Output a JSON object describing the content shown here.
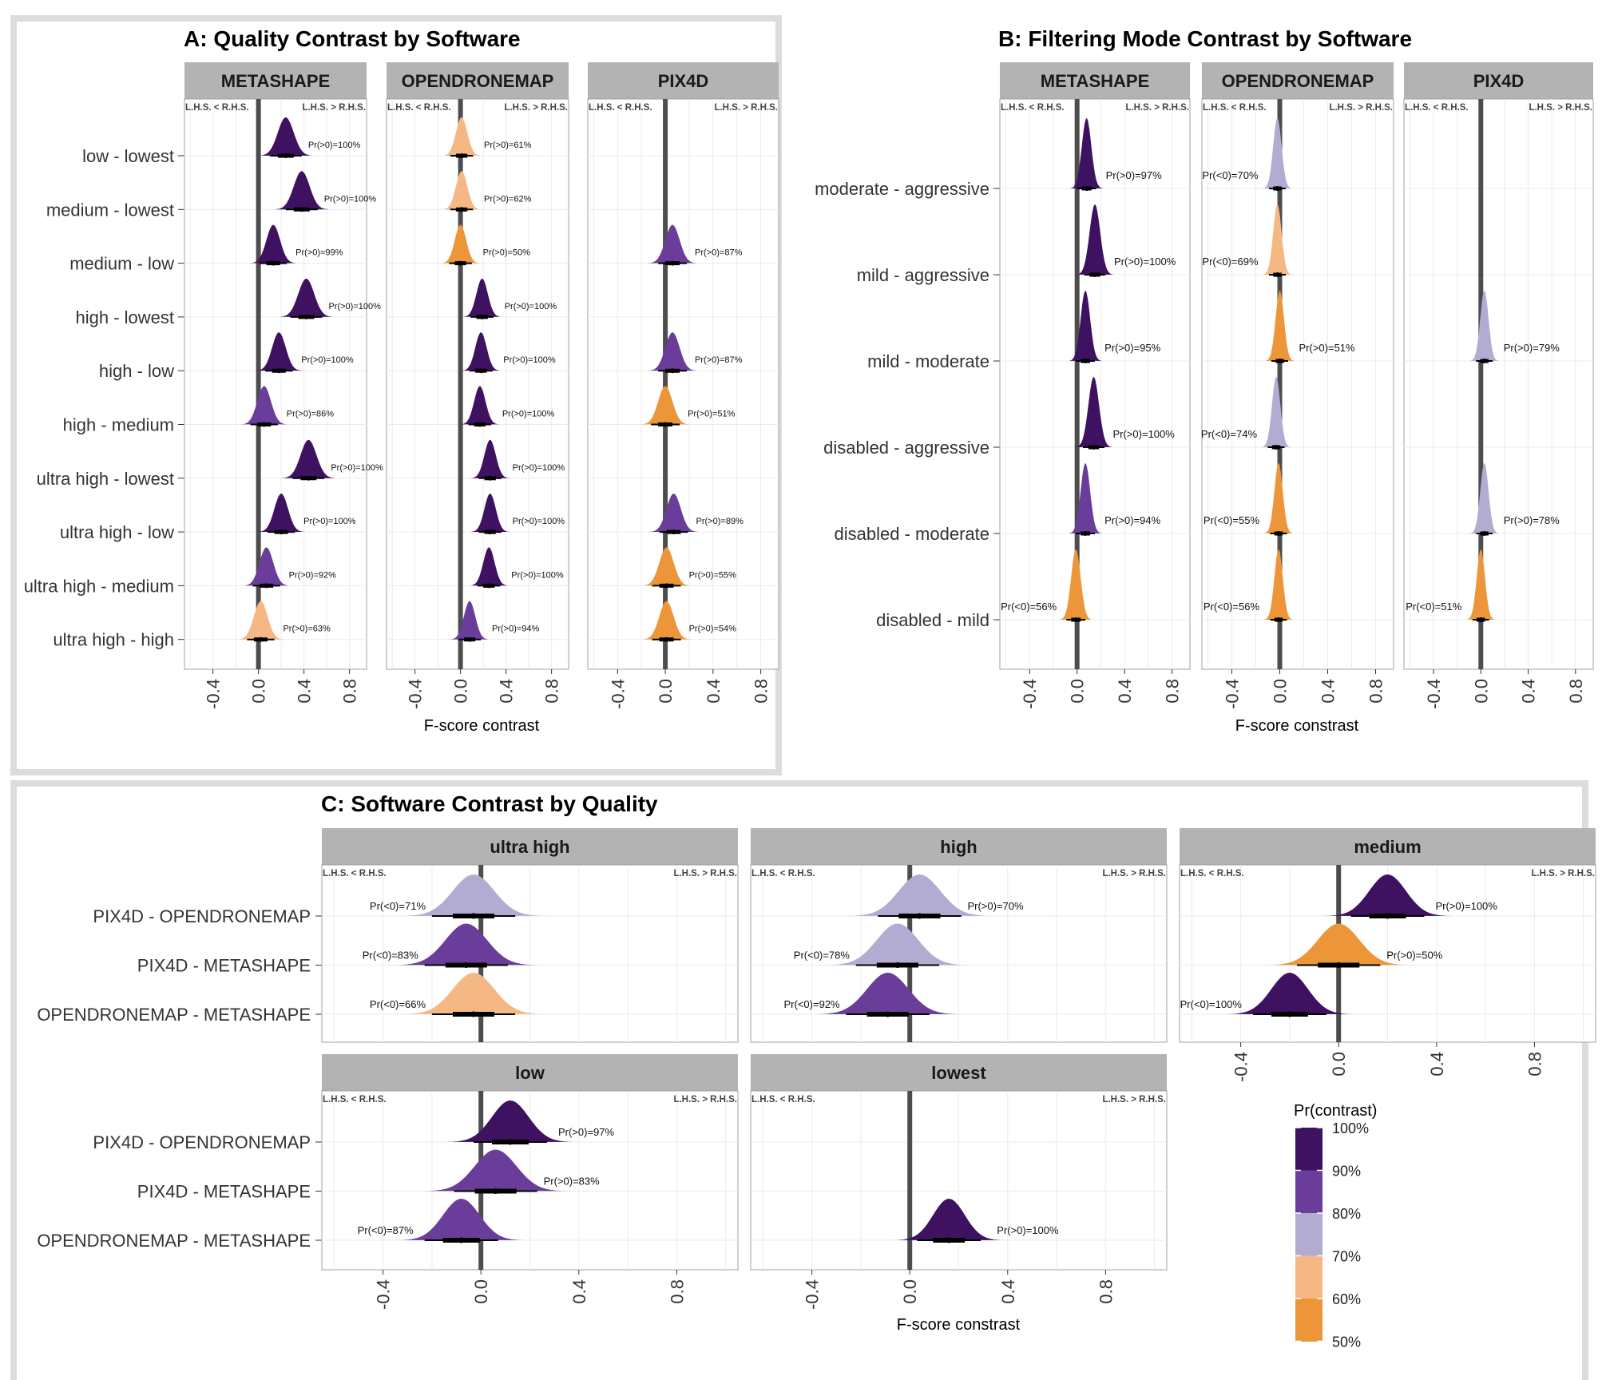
{
  "chart_data": [
    {
      "type": "density",
      "title": "A: Quality Contrast by Software",
      "xlabel": "F-score contrast",
      "xticks": [
        "-0.4",
        "0.0",
        "0.4",
        "0.8"
      ],
      "xlim": [
        -0.65,
        0.95
      ],
      "side_labels": [
        "L.H.S. < R.H.S.",
        "L.H.S. > R.H.S."
      ],
      "facets": [
        "METASHAPE",
        "OPENDRONEMAP",
        "PIX4D"
      ],
      "categories": [
        "low - lowest",
        "medium - lowest",
        "medium - low",
        "high - lowest",
        "high - low",
        "high - medium",
        "ultra high - lowest",
        "ultra high - low",
        "ultra high - medium",
        "ultra high - high"
      ],
      "series": [
        {
          "facet": "METASHAPE",
          "items": [
            {
              "c": "low - lowest",
              "mean": 0.24,
              "sd": 0.07,
              "label": "Pr(>0)=100%",
              "prob": 100
            },
            {
              "c": "medium - lowest",
              "mean": 0.38,
              "sd": 0.07,
              "label": "Pr(>0)=100%",
              "prob": 100
            },
            {
              "c": "medium - low",
              "mean": 0.13,
              "sd": 0.06,
              "label": "Pr(>0)=99%",
              "prob": 99
            },
            {
              "c": "high - lowest",
              "mean": 0.42,
              "sd": 0.07,
              "label": "Pr(>0)=100%",
              "prob": 100
            },
            {
              "c": "high - low",
              "mean": 0.18,
              "sd": 0.06,
              "label": "Pr(>0)=100%",
              "prob": 100
            },
            {
              "c": "high - medium",
              "mean": 0.05,
              "sd": 0.06,
              "label": "Pr(>0)=86%",
              "prob": 86
            },
            {
              "c": "ultra high - lowest",
              "mean": 0.44,
              "sd": 0.07,
              "label": "Pr(>0)=100%",
              "prob": 100
            },
            {
              "c": "ultra high - low",
              "mean": 0.2,
              "sd": 0.06,
              "label": "Pr(>0)=100%",
              "prob": 100
            },
            {
              "c": "ultra high - medium",
              "mean": 0.07,
              "sd": 0.06,
              "label": "Pr(>0)=92%",
              "prob": 92
            },
            {
              "c": "ultra high - high",
              "mean": 0.02,
              "sd": 0.06,
              "label": "Pr(>0)=63%",
              "prob": 63
            }
          ]
        },
        {
          "facet": "OPENDRONEMAP",
          "items": [
            {
              "c": "low - lowest",
              "mean": 0.01,
              "sd": 0.05,
              "label": "Pr(>0)=61%",
              "prob": 61
            },
            {
              "c": "medium - lowest",
              "mean": 0.01,
              "sd": 0.05,
              "label": "Pr(>0)=62%",
              "prob": 62
            },
            {
              "c": "medium - low",
              "mean": 0.0,
              "sd": 0.05,
              "label": "Pr(>0)=50%",
              "prob": 50
            },
            {
              "c": "high - lowest",
              "mean": 0.19,
              "sd": 0.05,
              "label": "Pr(>0)=100%",
              "prob": 100
            },
            {
              "c": "high - low",
              "mean": 0.18,
              "sd": 0.05,
              "label": "Pr(>0)=100%",
              "prob": 100
            },
            {
              "c": "high - medium",
              "mean": 0.17,
              "sd": 0.05,
              "label": "Pr(>0)=100%",
              "prob": 100
            },
            {
              "c": "ultra high - lowest",
              "mean": 0.26,
              "sd": 0.05,
              "label": "Pr(>0)=100%",
              "prob": 100
            },
            {
              "c": "ultra high - low",
              "mean": 0.26,
              "sd": 0.05,
              "label": "Pr(>0)=100%",
              "prob": 100
            },
            {
              "c": "ultra high - medium",
              "mean": 0.25,
              "sd": 0.05,
              "label": "Pr(>0)=100%",
              "prob": 100
            },
            {
              "c": "ultra high - high",
              "mean": 0.08,
              "sd": 0.05,
              "label": "Pr(>0)=94%",
              "prob": 94
            }
          ]
        },
        {
          "facet": "PIX4D",
          "items": [
            {
              "c": "medium - low",
              "mean": 0.06,
              "sd": 0.06,
              "label": "Pr(>0)=87%",
              "prob": 87
            },
            {
              "c": "high - low",
              "mean": 0.06,
              "sd": 0.06,
              "label": "Pr(>0)=87%",
              "prob": 87
            },
            {
              "c": "high - medium",
              "mean": 0.0,
              "sd": 0.06,
              "label": "Pr(>0)=51%",
              "prob": 51
            },
            {
              "c": "ultra high - low",
              "mean": 0.07,
              "sd": 0.06,
              "label": "Pr(>0)=89%",
              "prob": 89
            },
            {
              "c": "ultra high - medium",
              "mean": 0.01,
              "sd": 0.06,
              "label": "Pr(>0)=55%",
              "prob": 55
            },
            {
              "c": "ultra high - high",
              "mean": 0.01,
              "sd": 0.06,
              "label": "Pr(>0)=54%",
              "prob": 54
            }
          ]
        }
      ]
    },
    {
      "type": "density",
      "title": "B: Filtering Mode Contrast by Software",
      "xlabel": "F-score constrast",
      "xticks": [
        "-0.4",
        "0.0",
        "0.4",
        "0.8"
      ],
      "xlim": [
        -0.65,
        0.95
      ],
      "side_labels": [
        "L.H.S. < R.H.S.",
        "L.H.S. > R.H.S."
      ],
      "facets": [
        "METASHAPE",
        "OPENDRONEMAP",
        "PIX4D"
      ],
      "categories": [
        "moderate - aggressive",
        "mild - aggressive",
        "mild - moderate",
        "disabled - aggressive",
        "disabled - moderate",
        "disabled - mild"
      ],
      "series": [
        {
          "facet": "METASHAPE",
          "items": [
            {
              "c": "moderate - aggressive",
              "mean": 0.08,
              "sd": 0.04,
              "label": "Pr(>0)=97%",
              "prob": 97
            },
            {
              "c": "mild - aggressive",
              "mean": 0.15,
              "sd": 0.045,
              "label": "Pr(>0)=100%",
              "prob": 100
            },
            {
              "c": "mild - moderate",
              "mean": 0.07,
              "sd": 0.04,
              "label": "Pr(>0)=95%",
              "prob": 95
            },
            {
              "c": "disabled - aggressive",
              "mean": 0.14,
              "sd": 0.045,
              "label": "Pr(>0)=100%",
              "prob": 100
            },
            {
              "c": "disabled - moderate",
              "mean": 0.07,
              "sd": 0.04,
              "label": "Pr(>0)=94%",
              "prob": 94
            },
            {
              "c": "disabled - mild",
              "mean": -0.01,
              "sd": 0.04,
              "label": "Pr(<0)=56%",
              "prob": 56
            }
          ]
        },
        {
          "facet": "OPENDRONEMAP",
          "items": [
            {
              "c": "moderate - aggressive",
              "mean": -0.02,
              "sd": 0.035,
              "label": "Pr(<0)=70%",
              "prob": 70
            },
            {
              "c": "mild - aggressive",
              "mean": -0.02,
              "sd": 0.035,
              "label": "Pr(<0)=69%",
              "prob": 69
            },
            {
              "c": "mild - moderate",
              "mean": 0.0,
              "sd": 0.035,
              "label": "Pr(>0)=51%",
              "prob": 51
            },
            {
              "c": "disabled - aggressive",
              "mean": -0.03,
              "sd": 0.035,
              "label": "Pr(<0)=74%",
              "prob": 74
            },
            {
              "c": "disabled - moderate",
              "mean": -0.01,
              "sd": 0.035,
              "label": "Pr(<0)=55%",
              "prob": 55
            },
            {
              "c": "disabled - mild",
              "mean": -0.01,
              "sd": 0.035,
              "label": "Pr(<0)=56%",
              "prob": 56
            }
          ]
        },
        {
          "facet": "PIX4D",
          "items": [
            {
              "c": "mild - moderate",
              "mean": 0.03,
              "sd": 0.035,
              "label": "Pr(>0)=79%",
              "prob": 79
            },
            {
              "c": "disabled - moderate",
              "mean": 0.03,
              "sd": 0.035,
              "label": "Pr(>0)=78%",
              "prob": 78
            },
            {
              "c": "disabled - mild",
              "mean": -0.0,
              "sd": 0.035,
              "label": "Pr(<0)=51%",
              "prob": 51
            }
          ]
        }
      ]
    },
    {
      "type": "density",
      "title": "C: Software Contrast by Quality",
      "xlabel": "F-score constrast",
      "xticks": [
        "-0.4",
        "0.0",
        "0.4",
        "0.8"
      ],
      "xlim": [
        -0.65,
        1.05
      ],
      "side_labels": [
        "L.H.S. < R.H.S.",
        "L.H.S. > R.H.S."
      ],
      "facets": [
        "ultra high",
        "high",
        "medium",
        "low",
        "lowest"
      ],
      "categories": [
        "PIX4D - OPENDRONEMAP",
        "PIX4D - METASHAPE",
        "OPENDRONEMAP - METASHAPE"
      ],
      "series": [
        {
          "facet": "ultra high",
          "items": [
            {
              "c": "PIX4D - OPENDRONEMAP",
              "mean": -0.03,
              "sd": 0.085,
              "label": "Pr(<0)=71%",
              "prob": 71
            },
            {
              "c": "PIX4D - METASHAPE",
              "mean": -0.06,
              "sd": 0.085,
              "label": "Pr(<0)=83%",
              "prob": 83
            },
            {
              "c": "OPENDRONEMAP - METASHAPE",
              "mean": -0.03,
              "sd": 0.085,
              "label": "Pr(<0)=66%",
              "prob": 66
            }
          ]
        },
        {
          "facet": "high",
          "items": [
            {
              "c": "PIX4D - OPENDRONEMAP",
              "mean": 0.04,
              "sd": 0.085,
              "label": "Pr(>0)=70%",
              "prob": 70
            },
            {
              "c": "PIX4D - METASHAPE",
              "mean": -0.05,
              "sd": 0.085,
              "label": "Pr(<0)=78%",
              "prob": 78
            },
            {
              "c": "OPENDRONEMAP - METASHAPE",
              "mean": -0.09,
              "sd": 0.085,
              "label": "Pr(<0)=92%",
              "prob": 92
            }
          ]
        },
        {
          "facet": "medium",
          "items": [
            {
              "c": "PIX4D - OPENDRONEMAP",
              "mean": 0.2,
              "sd": 0.075,
              "label": "Pr(>0)=100%",
              "prob": 100
            },
            {
              "c": "PIX4D - METASHAPE",
              "mean": 0.0,
              "sd": 0.085,
              "label": "Pr(>0)=50%",
              "prob": 50
            },
            {
              "c": "OPENDRONEMAP - METASHAPE",
              "mean": -0.2,
              "sd": 0.075,
              "label": "Pr(<0)=100%",
              "prob": 100
            }
          ]
        },
        {
          "facet": "low",
          "items": [
            {
              "c": "PIX4D - OPENDRONEMAP",
              "mean": 0.12,
              "sd": 0.075,
              "label": "Pr(>0)=97%",
              "prob": 97
            },
            {
              "c": "PIX4D - METASHAPE",
              "mean": 0.06,
              "sd": 0.085,
              "label": "Pr(>0)=83%",
              "prob": 83
            },
            {
              "c": "OPENDRONEMAP - METASHAPE",
              "mean": -0.08,
              "sd": 0.075,
              "label": "Pr(<0)=87%",
              "prob": 87
            }
          ]
        },
        {
          "facet": "lowest",
          "items": [
            {
              "c": "OPENDRONEMAP - METASHAPE",
              "mean": 0.16,
              "sd": 0.065,
              "label": "Pr(>0)=100%",
              "prob": 100
            }
          ]
        }
      ],
      "legend": {
        "title": "Pr(contrast)",
        "labels": [
          "100%",
          "90%",
          "80%",
          "70%",
          "60%",
          "50%"
        ],
        "colors": [
          "#3f1161",
          "#6a3d9a",
          "#b2abd2",
          "#f5b885",
          "#ec9639"
        ]
      }
    }
  ]
}
